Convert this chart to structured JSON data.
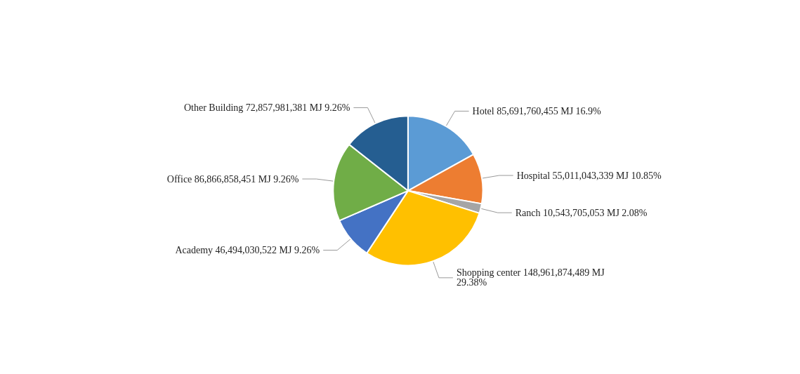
{
  "chart_data": {
    "type": "pie",
    "categories": [
      "Hotel",
      "Hospital",
      "Ranch",
      "Shopping center",
      "Academy",
      "Office",
      "Other Building"
    ],
    "values": [
      85691760455,
      55011043339,
      10543705053,
      148961874489,
      46494030522,
      86866858451,
      72857981381
    ],
    "value_labels": [
      "85,691,760,455 MJ 16.9%",
      "55,011,043,339 MJ 10.85%",
      "10,543,705,053 MJ 2.08%",
      "148,961,874,489 MJ 29.38%",
      "46,494,030,522 MJ 9.26%",
      "86,866,858,451 MJ 9.26%",
      "72,857,981,381 MJ 9.26%"
    ],
    "colors": [
      "#5b9bd5",
      "#ed7d31",
      "#a5a5a5",
      "#ffc000",
      "#4472c4",
      "#70ad47",
      "#255e91"
    ],
    "legend": false
  }
}
